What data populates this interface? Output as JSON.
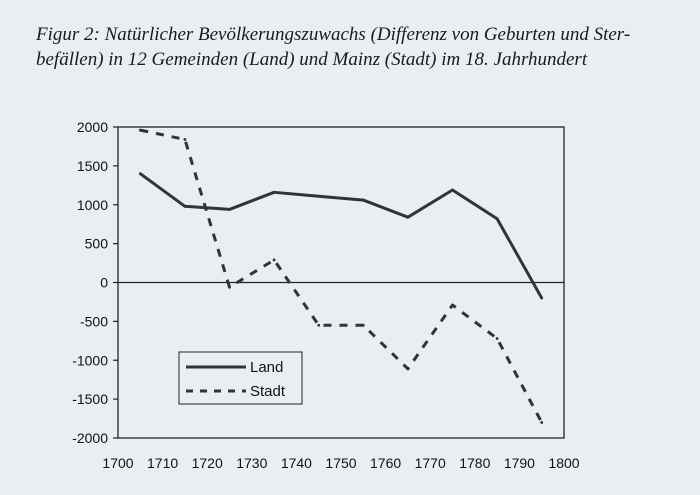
{
  "caption": {
    "line1": "Figur 2: Natürlicher Bevölkerungszuwachs (Differenz von Geburten und Ster-",
    "line2": "befällen) in 12 Gemeinden (Land) und Mainz (Stadt) im 18. Jahrhundert"
  },
  "chart_data": {
    "type": "line",
    "title": "",
    "xlabel": "",
    "ylabel": "",
    "xlim": [
      1700,
      1800
    ],
    "ylim": [
      -2000,
      2000
    ],
    "x_ticks": [
      1700,
      1710,
      1720,
      1730,
      1740,
      1750,
      1760,
      1770,
      1780,
      1790,
      1800
    ],
    "y_ticks": [
      2000,
      1500,
      1000,
      500,
      0,
      -500,
      -1000,
      -1500,
      -2000
    ],
    "x": [
      1705,
      1715,
      1725,
      1735,
      1745,
      1755,
      1765,
      1775,
      1785,
      1795
    ],
    "series": [
      {
        "name": "Land",
        "style": "solid",
        "color": "#333333",
        "values": [
          1400,
          980,
          940,
          1160,
          1110,
          1060,
          840,
          1190,
          820,
          -200
        ]
      },
      {
        "name": "Stadt",
        "style": "dashed",
        "color": "#333333",
        "values": [
          1960,
          1840,
          -60,
          290,
          -550,
          -550,
          -1110,
          -290,
          -720,
          -1800
        ]
      }
    ],
    "grid": false,
    "legend_position": "bottom-left"
  }
}
